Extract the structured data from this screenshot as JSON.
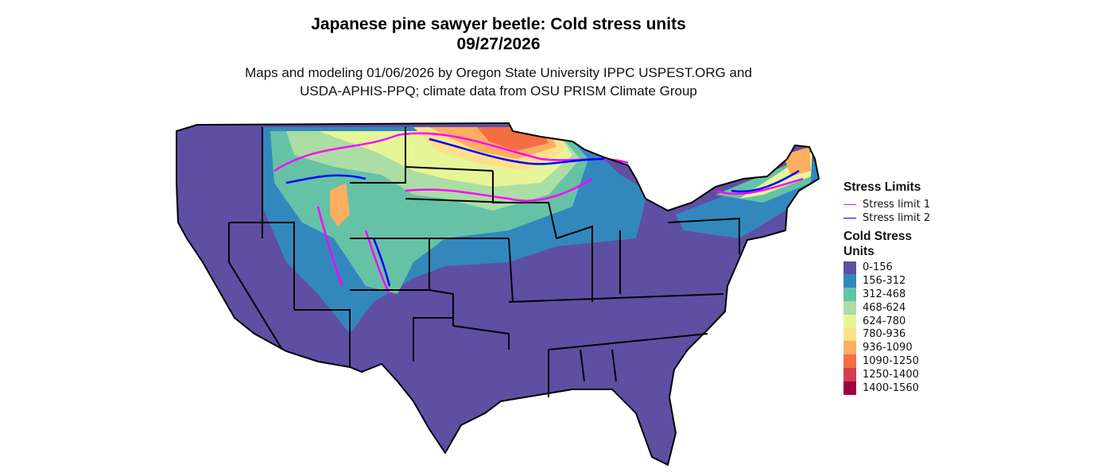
{
  "title_line1": "Japanese pine sawyer beetle: Cold stress units",
  "title_line2": "09/27/2026",
  "subtitle_line1": "Maps and modeling 01/06/2026 by Oregon State University IPPC USPEST.ORG and",
  "subtitle_line2": "USDA-APHIS-PPQ; climate data from OSU PRISM Climate Group",
  "legend": {
    "stress_title": "Stress Limits",
    "stress_items": [
      {
        "label": "Stress limit 1",
        "color": "#FF00FF"
      },
      {
        "label": "Stress limit 2",
        "color": "#0000FF"
      }
    ],
    "units_title_line1": "Cold Stress",
    "units_title_line2": "Units",
    "units_items": [
      {
        "label": "0-156",
        "color": "#5E4FA2"
      },
      {
        "label": "156-312",
        "color": "#3288BD"
      },
      {
        "label": "312-468",
        "color": "#66C2A5"
      },
      {
        "label": "468-624",
        "color": "#ABDDA4"
      },
      {
        "label": "624-780",
        "color": "#E6F598"
      },
      {
        "label": "780-936",
        "color": "#FEE08B"
      },
      {
        "label": "936-1090",
        "color": "#FDAE61"
      },
      {
        "label": "1090-1250",
        "color": "#F46D43"
      },
      {
        "label": "1250-1400",
        "color": "#D53E4F"
      },
      {
        "label": "1400-1560",
        "color": "#9E0142"
      }
    ]
  }
}
